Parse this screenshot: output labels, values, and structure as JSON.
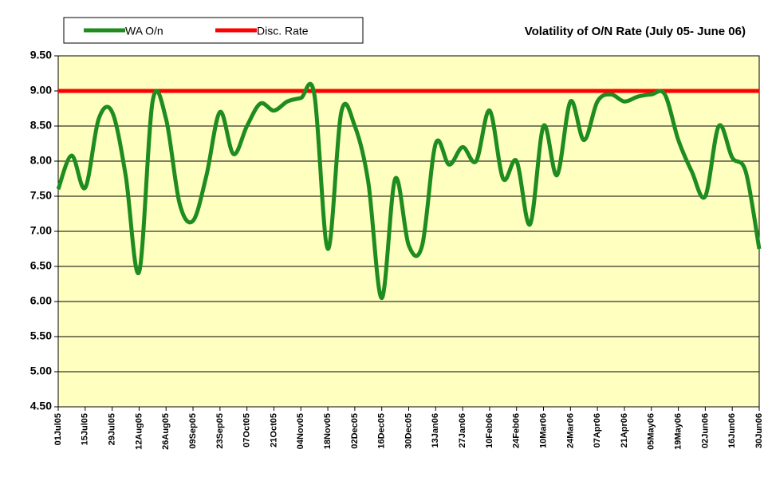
{
  "chart_data": {
    "type": "line",
    "title": "Volatility of O/N Rate (July 05- June 06)",
    "categories": [
      "01Jul05",
      null,
      "15Jul05",
      null,
      "29Jul05",
      null,
      "12Aug05",
      null,
      "26Aug05",
      null,
      "09Sep05",
      null,
      "23Sep05",
      null,
      "07Oct05",
      null,
      "21Oct05",
      null,
      "04Nov05",
      null,
      "18Nov05",
      null,
      "02Dec05",
      null,
      "16Dec05",
      null,
      "30Dec05",
      null,
      "13Jan06",
      null,
      "27Jan06",
      null,
      "10Feb06",
      null,
      "24Feb06",
      null,
      "10Mar06",
      null,
      "24Mar06",
      null,
      "07Apr06",
      null,
      "21Apr06",
      null,
      "05May06",
      null,
      "19May06",
      null,
      "02Jun06",
      null,
      "16Jun06",
      null,
      "30Jun06"
    ],
    "series": [
      {
        "name": "WA O/n",
        "color": "#1e8c1e",
        "values": [
          7.6,
          8.08,
          7.62,
          8.6,
          8.7,
          7.8,
          6.42,
          8.85,
          8.6,
          7.4,
          7.15,
          7.8,
          8.7,
          8.1,
          8.5,
          8.82,
          8.72,
          8.85,
          8.9,
          8.95,
          6.75,
          8.7,
          8.5,
          7.7,
          6.05,
          7.75,
          6.8,
          6.8,
          8.25,
          7.95,
          8.2,
          8.0,
          8.72,
          7.75,
          8.0,
          7.1,
          8.5,
          7.8,
          8.85,
          8.3,
          8.85,
          8.95,
          8.85,
          8.92,
          8.95,
          8.95,
          8.3,
          7.85,
          7.5,
          8.5,
          8.05,
          7.85,
          6.75
        ]
      },
      {
        "name": "Disc. Rate",
        "color": "#ff0000",
        "values": [
          9,
          9,
          9,
          9,
          9,
          9,
          9,
          9,
          9,
          9,
          9,
          9,
          9,
          9,
          9,
          9,
          9,
          9,
          9,
          9,
          9,
          9,
          9,
          9,
          9,
          9,
          9,
          9,
          9,
          9,
          9,
          9,
          9,
          9,
          9,
          9,
          9,
          9,
          9,
          9,
          9,
          9,
          9,
          9,
          9,
          9,
          9,
          9,
          9,
          9,
          9,
          9,
          9
        ]
      }
    ],
    "ylim": [
      4.5,
      9.5
    ],
    "yticks": [
      {
        "value": 4.5,
        "label": "4.50"
      },
      {
        "value": 5,
        "label": "5.00"
      },
      {
        "value": 5.5,
        "label": "5.50"
      },
      {
        "value": 6,
        "label": "6.00"
      },
      {
        "value": 6.5,
        "label": "6.50"
      },
      {
        "value": 7,
        "label": "7.00"
      },
      {
        "value": 7.5,
        "label": "7.50"
      },
      {
        "value": 8,
        "label": "8.00"
      },
      {
        "value": 8.5,
        "label": "8.50"
      },
      {
        "value": 9,
        "label": "9.00"
      },
      {
        "value": 9.5,
        "label": "9.50"
      }
    ],
    "grid": true,
    "background": "#ffffc0"
  }
}
